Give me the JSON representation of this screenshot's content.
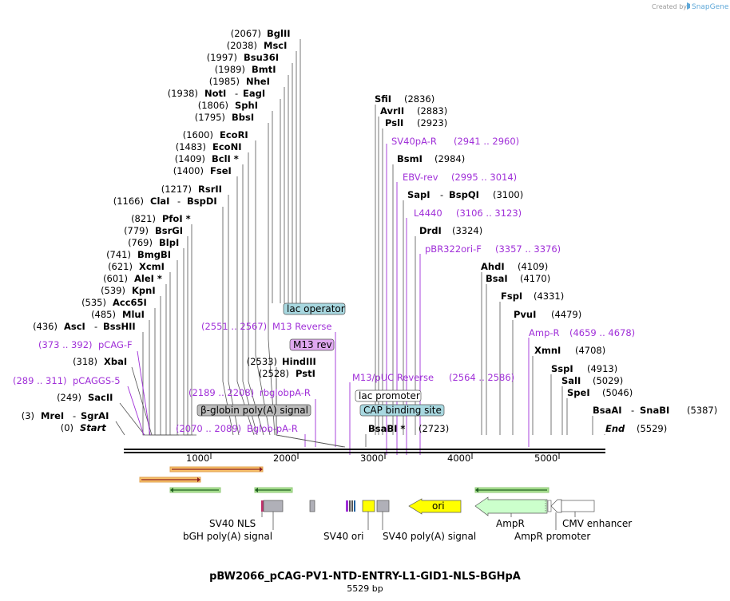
{
  "credit": {
    "text": "Created by",
    "brand": "SnapGene"
  },
  "title": "pBW2066_pCAG-PV1-NTD-ENTRY-L1-GID1-NLS-BGHpA",
  "subtitle": "5529 bp",
  "axis": {
    "ticks": [
      "1000",
      "2000",
      "3000",
      "4000",
      "5000"
    ]
  },
  "enzymes_left": [
    {
      "pos": "(2067)",
      "name": "BglII"
    },
    {
      "pos": "(2038)",
      "name": "MscI"
    },
    {
      "pos": "(1997)",
      "name": "Bsu36I"
    },
    {
      "pos": "(1989)",
      "name": "BmtI"
    },
    {
      "pos": "(1985)",
      "name": "NheI"
    },
    {
      "pos": "(1938)",
      "name": "NotI",
      "dash": "-",
      "name2": "EagI"
    },
    {
      "pos": "(1806)",
      "name": "SphI"
    },
    {
      "pos": "(1795)",
      "name": "BbsI"
    },
    {
      "pos": "(1600)",
      "name": "EcoRI"
    },
    {
      "pos": "(1483)",
      "name": "EcoNI"
    },
    {
      "pos": "(1409)",
      "name": "BclI *"
    },
    {
      "pos": "(1400)",
      "name": "FseI"
    },
    {
      "pos": "(1217)",
      "name": "RsrII"
    },
    {
      "pos": "(1166)",
      "name": "ClaI",
      "dash": "-",
      "name2": "BspDI"
    },
    {
      "pos": "(821)",
      "name": "PfoI *"
    },
    {
      "pos": "(779)",
      "name": "BsrGI"
    },
    {
      "pos": "(769)",
      "name": "BlpI"
    },
    {
      "pos": "(741)",
      "name": "BmgBI"
    },
    {
      "pos": "(621)",
      "name": "XcmI"
    },
    {
      "pos": "(601)",
      "name": "AleI *"
    },
    {
      "pos": "(539)",
      "name": "KpnI"
    },
    {
      "pos": "(535)",
      "name": "Acc65I"
    },
    {
      "pos": "(485)",
      "name": "MluI"
    },
    {
      "pos": "(436)",
      "name": "AscI",
      "dash": "-",
      "name2": "BssHII"
    },
    {
      "pos": "(318)",
      "name": "XbaI"
    },
    {
      "pos": "(249)",
      "name": "SacII"
    },
    {
      "pos": "(3)",
      "name": "MreI",
      "dash": "-",
      "name2": "SgrAI"
    },
    {
      "pos": "(0)",
      "name": "Start"
    }
  ],
  "primers_left": [
    {
      "range": "(373 .. 392)",
      "name": "pCAG-F"
    },
    {
      "range": "(289 .. 311)",
      "name": "pCAGGS-5"
    },
    {
      "range": "(2551 .. 2567)",
      "name": "M13 Reverse"
    },
    {
      "range": "(2189 .. 2208)",
      "name": "rbglobpA-R"
    },
    {
      "range": "(2070 .. 2089)",
      "name": "Bglob-pA-R"
    }
  ],
  "middle_enzymes": [
    {
      "pos": "(2533)",
      "name": "HindIII"
    },
    {
      "pos": "(2528)",
      "name": "PstI"
    }
  ],
  "boxes": [
    {
      "label": "lac operator"
    },
    {
      "label": "M13 rev"
    },
    {
      "label": "β-globin poly(A) signal"
    },
    {
      "label": "lac promoter"
    },
    {
      "label": "CAP binding site"
    }
  ],
  "enzymes_right": [
    {
      "name": "SfiI",
      "pos": "(2836)"
    },
    {
      "name": "AvrII",
      "pos": "(2883)"
    },
    {
      "name": "PslI",
      "pos": "(2923)"
    },
    {
      "name": "BsmI",
      "pos": "(2984)"
    },
    {
      "name": "SapI",
      "dash": "-",
      "name2": "BspQI",
      "pos": "(3100)"
    },
    {
      "name": "DrdI",
      "pos": "(3324)"
    },
    {
      "name": "AhdI",
      "pos": "(4109)"
    },
    {
      "name": "BsaI",
      "pos": "(4170)"
    },
    {
      "name": "FspI",
      "pos": "(4331)"
    },
    {
      "name": "PvuI",
      "pos": "(4479)"
    },
    {
      "name": "XmnI",
      "pos": "(4708)"
    },
    {
      "name": "SspI",
      "pos": "(4913)"
    },
    {
      "name": "SalI",
      "pos": "(5029)"
    },
    {
      "name": "SpeI",
      "pos": "(5046)"
    },
    {
      "name": "BsaAI",
      "dash": "-",
      "name2": "SnaBI",
      "pos": "(5387)"
    },
    {
      "name": "End",
      "pos": "(5529)"
    },
    {
      "name": "BsaBI *",
      "pos": "(2723)"
    }
  ],
  "primers_right": [
    {
      "name": "SV40pA-R",
      "range": "(2941 .. 2960)"
    },
    {
      "name": "EBV-rev",
      "range": "(2995 .. 3014)"
    },
    {
      "name": "L4440",
      "range": "(3106 .. 3123)"
    },
    {
      "name": "pBR322ori-F",
      "range": "(3357 .. 3376)"
    },
    {
      "name": "Amp-R",
      "range": "(4659 .. 4678)"
    },
    {
      "name": "M13/pUC Reverse",
      "range": "(2564 .. 2586)"
    }
  ],
  "features": {
    "sv40_nls": "SV40 NLS",
    "bgh": "bGH poly(A) signal",
    "sv40_ori": "SV40 ori",
    "sv40_polya": "SV40 poly(A) signal",
    "ori": "ori",
    "ampr": "AmpR",
    "ampr_promoter": "AmpR promoter",
    "cmv": "CMV enhancer"
  },
  "colors": {
    "primer": "#a030d8",
    "box_blue": "#a8d8e0",
    "box_purple": "#e0a8f0",
    "box_gray": "#bcbcbc",
    "ori": "#ffff00",
    "ampr": "#ccffcc"
  }
}
